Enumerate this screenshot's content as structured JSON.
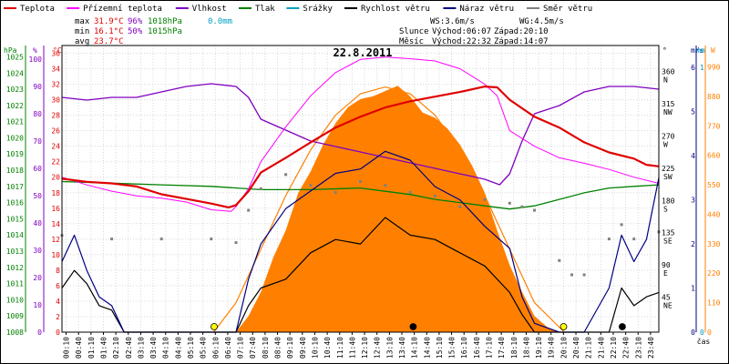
{
  "chart_data": {
    "type": "line",
    "title": "22.8.2011",
    "legend": {
      "placement": "top",
      "items": [
        {
          "label": "Teplota",
          "color": "#e00000"
        },
        {
          "label": "Přízemní teplota",
          "color": "#ff00ff"
        },
        {
          "label": "Vlhkost",
          "color": "#8000c0"
        },
        {
          "label": "Tlak",
          "color": "#008000"
        },
        {
          "label": "Srážky",
          "color": "#00a0c0"
        },
        {
          "label": "Rychlost větru",
          "color": "#000000"
        },
        {
          "label": "Náraz větru",
          "color": "#000080"
        },
        {
          "label": "Směr větru",
          "color": "#808080"
        }
      ]
    },
    "stats": {
      "max_label": "max",
      "max_temp": "31.9°C",
      "max_hum": "96%",
      "max_press": "1018hPa",
      "max_rain": "0.0mm",
      "min_label": "min",
      "min_temp": "16.1°C",
      "min_hum": "50%",
      "min_press": "1015hPa",
      "avg_label": "avg",
      "avg_temp": "23.7°C",
      "ws": "WS:3.6m/s",
      "wg": "WG:4.5m/s",
      "sun_label": "Slunce",
      "sun_rise": "Východ:06:07",
      "sun_set": "Západ:20:10",
      "moon_label": "Měsíc",
      "moon_rise": "Východ:22:32",
      "moon_set": "Západ:14:07"
    },
    "axes": {
      "hpa": {
        "unit": "hPa",
        "ticks": [
          "1008",
          "1009",
          "1010",
          "1011",
          "1012",
          "1013",
          "1014",
          "1015",
          "1016",
          "1017",
          "1018",
          "1019",
          "1020",
          "1021",
          "1022",
          "1023",
          "1024",
          "1025"
        ]
      },
      "hum": {
        "unit": "%",
        "ticks": [
          "0",
          "10",
          "20",
          "30",
          "40",
          "50",
          "60",
          "70",
          "80",
          "90",
          "100"
        ]
      },
      "temp": {
        "unit": "°C",
        "ticks": [
          "0",
          "2",
          "4",
          "6",
          "8",
          "10",
          "12",
          "14",
          "16",
          "18",
          "20",
          "22",
          "24",
          "26",
          "28",
          "30",
          "32",
          "34",
          "36"
        ]
      },
      "dir": {
        "unit": "°",
        "ticks": [
          {
            "v": "45",
            "d": "NE"
          },
          {
            "v": "90",
            "d": "E"
          },
          {
            "v": "135",
            "d": "SE"
          },
          {
            "v": "180",
            "d": "S"
          },
          {
            "v": "225",
            "d": "SW"
          },
          {
            "v": "270",
            "d": "W"
          },
          {
            "v": "315",
            "d": "NW"
          },
          {
            "v": "360",
            "d": "N"
          }
        ]
      },
      "ms": {
        "unit": "m/s",
        "ticks": [
          "0",
          "1",
          "2",
          "3",
          "4",
          "5",
          "6"
        ]
      },
      "mm": {
        "unit": "mm",
        "ticks": [
          "0",
          "1"
        ]
      },
      "w": {
        "unit": "W",
        "ticks": [
          "0",
          "110",
          "220",
          "330",
          "440",
          "550",
          "660",
          "770",
          "880",
          "990"
        ]
      },
      "x": {
        "label": "čas",
        "ticks": [
          "00:10",
          "00:40",
          "01:10",
          "01:40",
          "02:10",
          "02:40",
          "03:10",
          "03:40",
          "04:10",
          "04:40",
          "05:10",
          "05:40",
          "06:10",
          "06:40",
          "07:10",
          "07:40",
          "08:10",
          "08:40",
          "09:10",
          "09:40",
          "10:10",
          "10:40",
          "11:10",
          "11:40",
          "12:10",
          "12:40",
          "13:10",
          "13:40",
          "14:10",
          "14:40",
          "15:10",
          "15:40",
          "16:10",
          "16:40",
          "17:10",
          "17:40",
          "18:10",
          "18:40",
          "19:10",
          "19:40",
          "20:10",
          "20:40",
          "21:10",
          "21:40",
          "22:10",
          "22:40",
          "23:10",
          "23:40"
        ]
      }
    },
    "series": {
      "temperature_c": [
        [
          0,
          19.8
        ],
        [
          1,
          19.4
        ],
        [
          2,
          19.2
        ],
        [
          3,
          18.8
        ],
        [
          4,
          17.8
        ],
        [
          5,
          17.2
        ],
        [
          6,
          16.6
        ],
        [
          6.7,
          16.1
        ],
        [
          7,
          16.4
        ],
        [
          7.5,
          18.2
        ],
        [
          8,
          20.6
        ],
        [
          9,
          22.5
        ],
        [
          10,
          24.5
        ],
        [
          11,
          26.4
        ],
        [
          12,
          27.8
        ],
        [
          13,
          29.0
        ],
        [
          14,
          29.8
        ],
        [
          15,
          30.4
        ],
        [
          16,
          31.0
        ],
        [
          17,
          31.7
        ],
        [
          17.5,
          31.6
        ],
        [
          18,
          30.0
        ],
        [
          19,
          27.8
        ],
        [
          20,
          26.4
        ],
        [
          21,
          24.5
        ],
        [
          22,
          23.2
        ],
        [
          23,
          22.4
        ],
        [
          23.5,
          21.6
        ],
        [
          24,
          21.4
        ]
      ],
      "ground_temp_c": [
        [
          0,
          20.0
        ],
        [
          1,
          19.0
        ],
        [
          2,
          18.2
        ],
        [
          3,
          17.6
        ],
        [
          4,
          17.3
        ],
        [
          5,
          16.8
        ],
        [
          6,
          15.8
        ],
        [
          6.8,
          15.6
        ],
        [
          7,
          16.2
        ],
        [
          7.5,
          18.5
        ],
        [
          8,
          22.0
        ],
        [
          9,
          26.5
        ],
        [
          10,
          30.5
        ],
        [
          11,
          33.5
        ],
        [
          12,
          35.2
        ],
        [
          13,
          35.5
        ],
        [
          14,
          35.3
        ],
        [
          15,
          35.0
        ],
        [
          16,
          34.0
        ],
        [
          17,
          32.0
        ],
        [
          17.5,
          30.5
        ],
        [
          18,
          26.0
        ],
        [
          19,
          24.0
        ],
        [
          20,
          22.5
        ],
        [
          21,
          21.8
        ],
        [
          22,
          21.0
        ],
        [
          23,
          20.0
        ],
        [
          24,
          19.2
        ]
      ],
      "humidity_pct": [
        [
          0,
          86
        ],
        [
          1,
          85
        ],
        [
          2,
          86
        ],
        [
          3,
          86
        ],
        [
          4,
          88
        ],
        [
          5,
          90
        ],
        [
          6,
          91
        ],
        [
          7,
          90
        ],
        [
          7.5,
          86
        ],
        [
          8,
          78
        ],
        [
          9,
          74
        ],
        [
          10,
          70
        ],
        [
          11,
          68
        ],
        [
          12,
          66
        ],
        [
          13,
          64
        ],
        [
          14,
          62
        ],
        [
          15,
          60
        ],
        [
          16,
          58
        ],
        [
          17,
          56
        ],
        [
          17.6,
          54
        ],
        [
          18,
          58
        ],
        [
          18.5,
          70
        ],
        [
          19,
          80
        ],
        [
          20,
          83
        ],
        [
          21,
          88
        ],
        [
          22,
          90
        ],
        [
          23,
          90
        ],
        [
          24,
          89
        ]
      ],
      "pressure_hpa": [
        [
          0,
          1017.3
        ],
        [
          2,
          1017.2
        ],
        [
          4,
          1017.1
        ],
        [
          6,
          1017.0
        ],
        [
          8,
          1016.8
        ],
        [
          10,
          1016.8
        ],
        [
          12,
          1016.9
        ],
        [
          13,
          1016.7
        ],
        [
          14,
          1016.5
        ],
        [
          15,
          1016.2
        ],
        [
          16,
          1016.0
        ],
        [
          17,
          1015.8
        ],
        [
          18,
          1015.6
        ],
        [
          19,
          1015.8
        ],
        [
          20,
          1016.2
        ],
        [
          21,
          1016.6
        ],
        [
          22,
          1016.9
        ],
        [
          23,
          1017.0
        ],
        [
          24,
          1017.1
        ]
      ],
      "solar_w": [
        [
          7,
          0
        ],
        [
          7.5,
          60
        ],
        [
          8,
          150
        ],
        [
          8.5,
          280
        ],
        [
          9,
          380
        ],
        [
          9.5,
          520
        ],
        [
          10,
          600
        ],
        [
          10.5,
          700
        ],
        [
          11,
          780
        ],
        [
          11.5,
          840
        ],
        [
          12,
          870
        ],
        [
          12.5,
          880
        ],
        [
          13,
          900
        ],
        [
          13.5,
          920
        ],
        [
          14,
          880
        ],
        [
          14.5,
          820
        ],
        [
          15,
          800
        ],
        [
          15.5,
          760
        ],
        [
          16,
          700
        ],
        [
          16.5,
          620
        ],
        [
          17,
          520
        ],
        [
          17.5,
          380
        ],
        [
          18,
          250
        ],
        [
          18.5,
          150
        ],
        [
          19,
          60
        ],
        [
          19.5,
          20
        ],
        [
          20,
          0
        ]
      ],
      "solar_theoretical_w": [
        [
          6.1,
          0
        ],
        [
          7,
          110
        ],
        [
          8,
          310
        ],
        [
          9,
          510
        ],
        [
          10,
          680
        ],
        [
          11,
          810
        ],
        [
          12,
          890
        ],
        [
          13,
          915
        ],
        [
          14,
          890
        ],
        [
          15,
          810
        ],
        [
          16,
          680
        ],
        [
          17,
          510
        ],
        [
          18,
          310
        ],
        [
          19,
          110
        ],
        [
          20.2,
          0
        ]
      ],
      "wind_speed_ms": [
        [
          0,
          1.0
        ],
        [
          0.5,
          1.4
        ],
        [
          1,
          1.1
        ],
        [
          1.5,
          0.6
        ],
        [
          2,
          0.5
        ],
        [
          2.5,
          0
        ],
        [
          7,
          0
        ],
        [
          7.5,
          0.6
        ],
        [
          8,
          1.0
        ],
        [
          9,
          1.2
        ],
        [
          10,
          1.8
        ],
        [
          11,
          2.1
        ],
        [
          12,
          2.0
        ],
        [
          13,
          2.6
        ],
        [
          14,
          2.2
        ],
        [
          15,
          2.1
        ],
        [
          16,
          1.8
        ],
        [
          17,
          1.5
        ],
        [
          18,
          0.9
        ],
        [
          18.5,
          0.4
        ],
        [
          19,
          0
        ],
        [
          22,
          0
        ],
        [
          22.5,
          1.0
        ],
        [
          23,
          0.6
        ],
        [
          23.5,
          0.8
        ],
        [
          24,
          0.9
        ]
      ],
      "wind_gust_ms": [
        [
          0,
          1.6
        ],
        [
          0.5,
          2.2
        ],
        [
          1,
          1.4
        ],
        [
          1.5,
          0.8
        ],
        [
          2,
          0.6
        ],
        [
          2.5,
          0
        ],
        [
          7,
          0
        ],
        [
          7.5,
          1.2
        ],
        [
          8,
          2.0
        ],
        [
          9,
          2.8
        ],
        [
          10,
          3.2
        ],
        [
          11,
          3.6
        ],
        [
          12,
          3.7
        ],
        [
          13,
          4.1
        ],
        [
          14,
          3.9
        ],
        [
          15,
          3.3
        ],
        [
          16,
          3.0
        ],
        [
          17,
          2.4
        ],
        [
          18,
          1.9
        ],
        [
          18.5,
          0.8
        ],
        [
          19,
          0.2
        ],
        [
          20,
          0
        ],
        [
          21,
          0
        ],
        [
          22,
          1.0
        ],
        [
          22.5,
          2.2
        ],
        [
          23,
          1.6
        ],
        [
          23.5,
          2.1
        ],
        [
          24,
          3.5
        ]
      ],
      "wind_dir_deg": [
        [
          0,
          135
        ],
        [
          2,
          130
        ],
        [
          4,
          130
        ],
        [
          6,
          130
        ],
        [
          7,
          125
        ],
        [
          7.5,
          170
        ],
        [
          8,
          200
        ],
        [
          9,
          220
        ],
        [
          10,
          205
        ],
        [
          11,
          195
        ],
        [
          12,
          210
        ],
        [
          13,
          205
        ],
        [
          14,
          195
        ],
        [
          15,
          190
        ],
        [
          16,
          175
        ],
        [
          17,
          185
        ],
        [
          18,
          180
        ],
        [
          18.5,
          175
        ],
        [
          19,
          170
        ],
        [
          20,
          100
        ],
        [
          20.5,
          80
        ],
        [
          21,
          80
        ],
        [
          22,
          130
        ],
        [
          22.5,
          150
        ],
        [
          23,
          130
        ],
        [
          24,
          140
        ]
      ],
      "rain_mm": [
        [
          0,
          0
        ],
        [
          24,
          0
        ]
      ]
    },
    "markers": [
      {
        "label": "Východ slunce",
        "time": 6.12,
        "color": "#ffff00"
      },
      {
        "label": "Západ měsíce",
        "time": 14.12,
        "color": "#000000"
      },
      {
        "label": "Západ slunce",
        "time": 20.17,
        "color": "#ffff00"
      },
      {
        "label": "Východ měsíce",
        "time": 22.53,
        "color": "#000000"
      }
    ]
  }
}
